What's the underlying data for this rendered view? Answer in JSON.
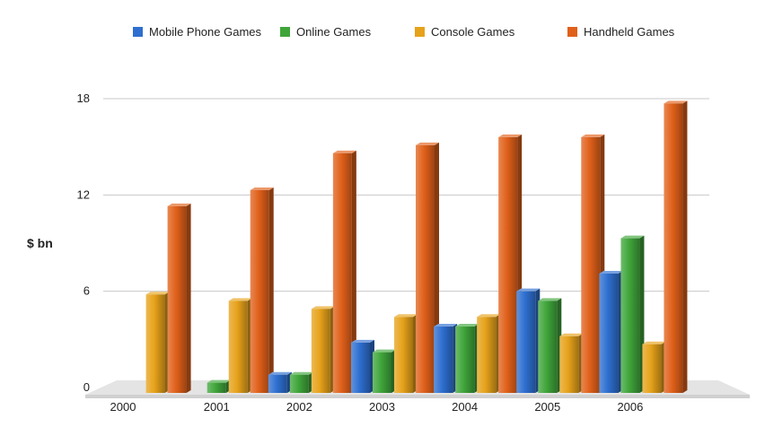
{
  "chart_data": {
    "type": "bar",
    "title": "",
    "xlabel": "",
    "ylabel": "$ bn",
    "categories": [
      "2000",
      "2001",
      "2002",
      "2003",
      "2004",
      "2005",
      "2006"
    ],
    "series": [
      {
        "name": "Mobile Phone Games",
        "color": "#2e6fd0",
        "values": [
          0,
          0,
          0.8,
          2.8,
          3.8,
          6.0,
          7.1
        ]
      },
      {
        "name": "Online Games",
        "color": "#3fa53a",
        "values": [
          0,
          0.3,
          0.8,
          2.2,
          3.8,
          5.4,
          9.3
        ]
      },
      {
        "name": "Console Games",
        "color": "#e6a21a",
        "values": [
          5.8,
          5.4,
          4.9,
          4.4,
          4.4,
          3.2,
          2.7
        ]
      },
      {
        "name": "Handheld Games",
        "color": "#e0601a",
        "values": [
          11.3,
          12.3,
          14.6,
          15.1,
          15.6,
          15.6,
          17.7
        ]
      }
    ],
    "yticks": [
      0,
      6,
      12,
      18
    ],
    "ylim": [
      0,
      18
    ],
    "grid": true,
    "legend": "top-center"
  }
}
